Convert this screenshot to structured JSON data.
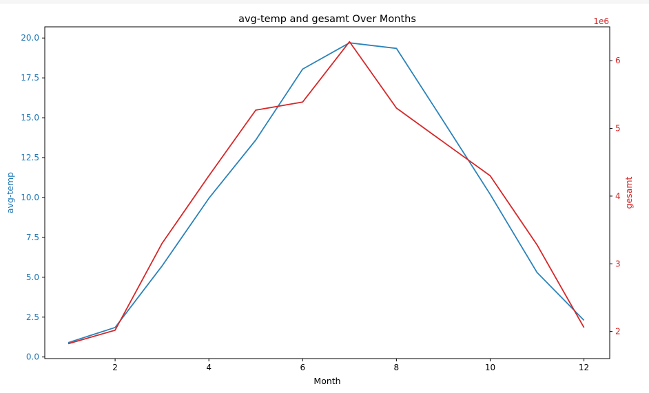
{
  "colors": {
    "left_axis": "#1f77b4",
    "right_axis": "#d62728",
    "avg_temp_line": "#2b83ba",
    "gesamt_line": "#d62728",
    "axis": "#000000",
    "background": "#ffffff"
  },
  "chart_data": {
    "type": "line",
    "title": "avg-temp and gesamt Over Months",
    "xlabel": "Month",
    "ylabel_left": "avg-temp",
    "ylabel_right": "gesamt",
    "right_offset_label": "1e6",
    "x": [
      1,
      2,
      3,
      4,
      5,
      6,
      7,
      8,
      9,
      10,
      11,
      12
    ],
    "xlim": [
      0.5,
      12.55
    ],
    "xticks": [
      2,
      4,
      6,
      8,
      10,
      12
    ],
    "ylim_left": [
      -0.1,
      20.7
    ],
    "yticks_left": [
      "0.0",
      "2.5",
      "5.0",
      "7.5",
      "10.0",
      "12.5",
      "15.0",
      "17.5",
      "20.0"
    ],
    "ylim_right": [
      1.6,
      6.5
    ],
    "yticks_right": [
      "2",
      "3",
      "4",
      "5",
      "6"
    ],
    "series": [
      {
        "name": "avg-temp",
        "axis": "left",
        "values": [
          0.9,
          1.85,
          5.7,
          9.95,
          13.6,
          18.05,
          19.7,
          19.35,
          14.8,
          10.2,
          5.3,
          2.3
        ]
      },
      {
        "name": "gesamt",
        "axis": "right",
        "values": [
          1.82,
          2.02,
          3.3,
          4.3,
          5.27,
          5.39,
          6.28,
          5.3,
          4.8,
          4.3,
          3.28,
          2.06
        ]
      }
    ],
    "grid": false,
    "legend": "none"
  }
}
